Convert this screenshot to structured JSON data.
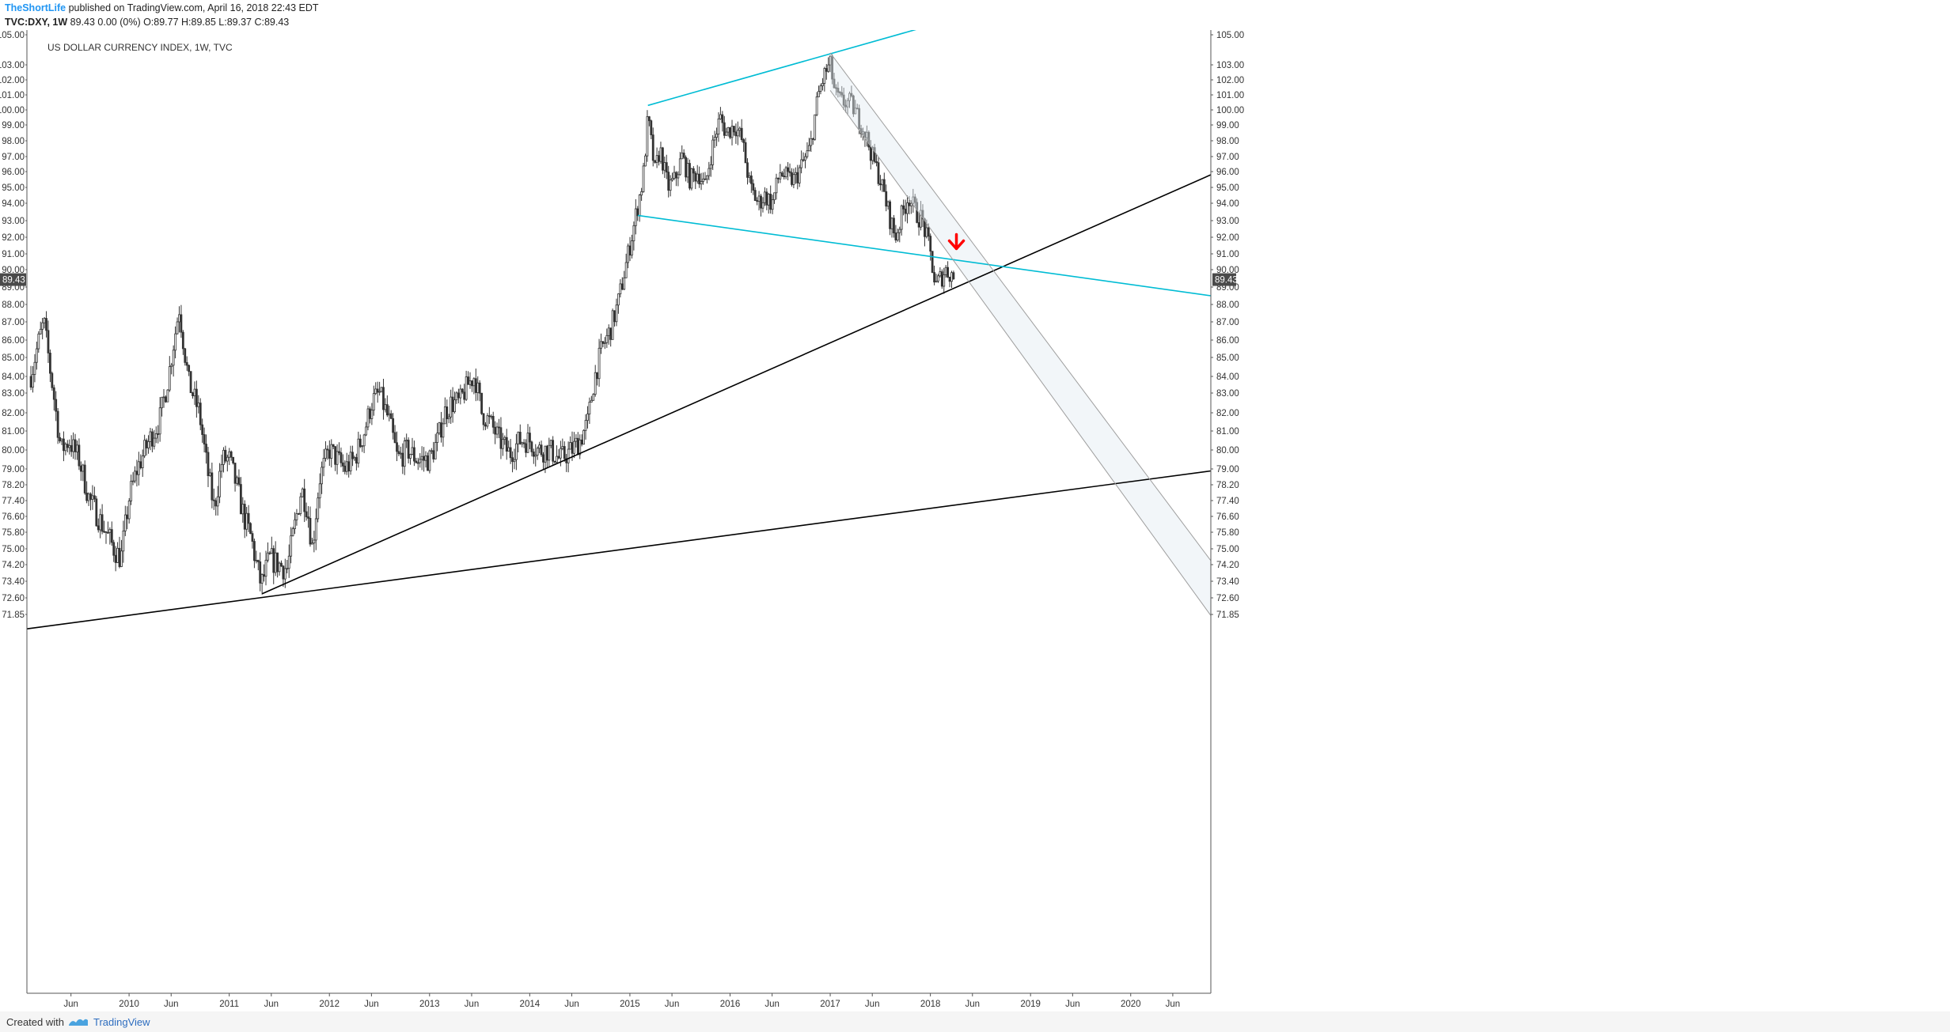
{
  "header": {
    "author": "TheShortLife",
    "published": " published on TradingView.com, April 16, 2018 22:43 EDT",
    "symbol": "TVC:DXY, 1W",
    "ohlc": "  89.43 0.00 (0%)  O:89.77  H:89.85  L:89.37  C:89.43"
  },
  "footer": {
    "created_with": "Created with",
    "brand": "TradingView"
  },
  "chart_data": {
    "type": "candlestick",
    "title": "US DOLLAR CURRENCY INDEX, 1W, TVC",
    "last_price": 89.43,
    "last_price_label": "89.43",
    "y_ticks": [
      {
        "v": 105.0,
        "label": "105.00"
      },
      {
        "v": 103.0,
        "label": "103.00"
      },
      {
        "v": 102.0,
        "label": "102.00"
      },
      {
        "v": 101.0,
        "label": "101.00"
      },
      {
        "v": 100.0,
        "label": "100.00"
      },
      {
        "v": 99.0,
        "label": "99.00"
      },
      {
        "v": 98.0,
        "label": "98.00"
      },
      {
        "v": 97.0,
        "label": "97.00"
      },
      {
        "v": 96.0,
        "label": "96.00"
      },
      {
        "v": 95.0,
        "label": "95.00"
      },
      {
        "v": 94.0,
        "label": "94.00"
      },
      {
        "v": 93.0,
        "label": "93.00"
      },
      {
        "v": 92.0,
        "label": "92.00"
      },
      {
        "v": 91.0,
        "label": "91.00"
      },
      {
        "v": 90.0,
        "label": "90.00"
      },
      {
        "v": 89.0,
        "label": "89.00"
      },
      {
        "v": 88.0,
        "label": "88.00"
      },
      {
        "v": 87.0,
        "label": "87.00"
      },
      {
        "v": 86.0,
        "label": "86.00"
      },
      {
        "v": 85.0,
        "label": "85.00"
      },
      {
        "v": 84.0,
        "label": "84.00"
      },
      {
        "v": 83.0,
        "label": "83.00"
      },
      {
        "v": 82.0,
        "label": "82.00"
      },
      {
        "v": 81.0,
        "label": "81.00"
      },
      {
        "v": 80.0,
        "label": "80.00"
      },
      {
        "v": 79.0,
        "label": "79.00"
      },
      {
        "v": 78.2,
        "label": "78.20"
      },
      {
        "v": 77.4,
        "label": "77.40"
      },
      {
        "v": 76.6,
        "label": "76.60"
      },
      {
        "v": 75.8,
        "label": "75.80"
      },
      {
        "v": 75.0,
        "label": "75.00"
      },
      {
        "v": 74.2,
        "label": "74.20"
      },
      {
        "v": 73.4,
        "label": "73.40"
      },
      {
        "v": 72.6,
        "label": "72.60"
      },
      {
        "v": 71.85,
        "label": "71.85"
      }
    ],
    "x_ticks": [
      {
        "t": 2009.42,
        "label": "Jun"
      },
      {
        "t": 2010.0,
        "label": "2010"
      },
      {
        "t": 2010.42,
        "label": "Jun"
      },
      {
        "t": 2011.0,
        "label": "2011"
      },
      {
        "t": 2011.42,
        "label": "Jun"
      },
      {
        "t": 2012.0,
        "label": "2012"
      },
      {
        "t": 2012.42,
        "label": "Jun"
      },
      {
        "t": 2013.0,
        "label": "2013"
      },
      {
        "t": 2013.42,
        "label": "Jun"
      },
      {
        "t": 2014.0,
        "label": "2014"
      },
      {
        "t": 2014.42,
        "label": "Jun"
      },
      {
        "t": 2015.0,
        "label": "2015"
      },
      {
        "t": 2015.42,
        "label": "Jun"
      },
      {
        "t": 2016.0,
        "label": "2016"
      },
      {
        "t": 2016.42,
        "label": "Jun"
      },
      {
        "t": 2017.0,
        "label": "2017"
      },
      {
        "t": 2017.42,
        "label": "Jun"
      },
      {
        "t": 2018.0,
        "label": "2018"
      },
      {
        "t": 2018.42,
        "label": "Jun"
      },
      {
        "t": 2019.0,
        "label": "2019"
      },
      {
        "t": 2019.42,
        "label": "Jun"
      },
      {
        "t": 2020.0,
        "label": "2020"
      },
      {
        "t": 2020.42,
        "label": "Jun"
      }
    ],
    "price_path": [
      [
        2009.02,
        84.0
      ],
      [
        2009.1,
        86.0
      ],
      [
        2009.15,
        87.0
      ],
      [
        2009.22,
        84.0
      ],
      [
        2009.32,
        80.0
      ],
      [
        2009.4,
        80.5
      ],
      [
        2009.5,
        79.5
      ],
      [
        2009.6,
        77.5
      ],
      [
        2009.7,
        76.5
      ],
      [
        2009.85,
        75.0
      ],
      [
        2009.92,
        74.5
      ],
      [
        2010.0,
        77.5
      ],
      [
        2010.08,
        79.0
      ],
      [
        2010.2,
        80.5
      ],
      [
        2010.3,
        81.5
      ],
      [
        2010.38,
        83.5
      ],
      [
        2010.45,
        86.0
      ],
      [
        2010.5,
        87.8
      ],
      [
        2010.55,
        85.5
      ],
      [
        2010.6,
        83.5
      ],
      [
        2010.7,
        82.0
      ],
      [
        2010.78,
        79.0
      ],
      [
        2010.85,
        77.0
      ],
      [
        2010.93,
        79.5
      ],
      [
        2011.0,
        79.5
      ],
      [
        2011.08,
        78.0
      ],
      [
        2011.15,
        76.5
      ],
      [
        2011.22,
        75.5
      ],
      [
        2011.28,
        74.0
      ],
      [
        2011.32,
        73.2
      ],
      [
        2011.4,
        74.5
      ],
      [
        2011.5,
        74.2
      ],
      [
        2011.58,
        74.0
      ],
      [
        2011.65,
        76.0
      ],
      [
        2011.72,
        78.0
      ],
      [
        2011.78,
        77.0
      ],
      [
        2011.83,
        75.0
      ],
      [
        2011.9,
        78.5
      ],
      [
        2012.0,
        80.0
      ],
      [
        2012.08,
        79.5
      ],
      [
        2012.15,
        79.0
      ],
      [
        2012.25,
        79.5
      ],
      [
        2012.35,
        81.0
      ],
      [
        2012.42,
        82.5
      ],
      [
        2012.5,
        83.0
      ],
      [
        2012.6,
        81.5
      ],
      [
        2012.68,
        79.5
      ],
      [
        2012.78,
        80.0
      ],
      [
        2012.88,
        79.5
      ],
      [
        2013.0,
        79.5
      ],
      [
        2013.08,
        80.5
      ],
      [
        2013.15,
        82.0
      ],
      [
        2013.22,
        82.5
      ],
      [
        2013.3,
        82.5
      ],
      [
        2013.38,
        83.5
      ],
      [
        2013.45,
        84.0
      ],
      [
        2013.52,
        82.0
      ],
      [
        2013.6,
        81.5
      ],
      [
        2013.7,
        80.5
      ],
      [
        2013.8,
        79.8
      ],
      [
        2013.9,
        80.5
      ],
      [
        2014.0,
        80.5
      ],
      [
        2014.08,
        80.0
      ],
      [
        2014.2,
        80.0
      ],
      [
        2014.3,
        79.5
      ],
      [
        2014.42,
        80.0
      ],
      [
        2014.5,
        80.5
      ],
      [
        2014.58,
        81.5
      ],
      [
        2014.65,
        84.0
      ],
      [
        2014.72,
        85.5
      ],
      [
        2014.8,
        86.5
      ],
      [
        2014.88,
        88.0
      ],
      [
        2014.95,
        90.0
      ],
      [
        2015.05,
        93.0
      ],
      [
        2015.13,
        95.5
      ],
      [
        2015.18,
        99.5
      ],
      [
        2015.25,
        96.0
      ],
      [
        2015.3,
        97.5
      ],
      [
        2015.38,
        95.0
      ],
      [
        2015.45,
        95.5
      ],
      [
        2015.52,
        97.0
      ],
      [
        2015.6,
        95.5
      ],
      [
        2015.68,
        96.0
      ],
      [
        2015.75,
        95.0
      ],
      [
        2015.82,
        97.5
      ],
      [
        2015.9,
        99.5
      ],
      [
        2015.96,
        98.5
      ],
      [
        2016.05,
        99.0
      ],
      [
        2016.12,
        98.0
      ],
      [
        2016.2,
        95.0
      ],
      [
        2016.28,
        94.0
      ],
      [
        2016.35,
        94.5
      ],
      [
        2016.42,
        94.0
      ],
      [
        2016.5,
        96.0
      ],
      [
        2016.58,
        95.5
      ],
      [
        2016.65,
        95.5
      ],
      [
        2016.72,
        96.5
      ],
      [
        2016.8,
        97.5
      ],
      [
        2016.88,
        101.0
      ],
      [
        2016.95,
        102.5
      ],
      [
        2017.0,
        103.0
      ],
      [
        2017.05,
        101.0
      ],
      [
        2017.12,
        100.5
      ],
      [
        2017.2,
        100.5
      ],
      [
        2017.28,
        99.5
      ],
      [
        2017.35,
        98.5
      ],
      [
        2017.42,
        97.0
      ],
      [
        2017.5,
        95.5
      ],
      [
        2017.58,
        93.5
      ],
      [
        2017.65,
        92.0
      ],
      [
        2017.7,
        93.0
      ],
      [
        2017.78,
        94.5
      ],
      [
        2017.85,
        93.5
      ],
      [
        2017.92,
        93.0
      ],
      [
        2018.0,
        91.0
      ],
      [
        2018.05,
        89.0
      ],
      [
        2018.1,
        89.5
      ],
      [
        2018.15,
        90.0
      ],
      [
        2018.2,
        89.8
      ],
      [
        2018.25,
        89.43
      ]
    ],
    "trendlines": [
      {
        "name": "lower-trendline",
        "color": "#000000",
        "points": [
          [
            2008.98,
            71.2
          ],
          [
            2020.8,
            78.9
          ]
        ]
      },
      {
        "name": "rising-support-line",
        "color": "#000000",
        "points": [
          [
            2011.33,
            72.8
          ],
          [
            2020.8,
            95.8
          ]
        ]
      },
      {
        "name": "channel-top-line",
        "color": "#00bcd4",
        "points": [
          [
            2015.18,
            100.3
          ],
          [
            2018.2,
            106.0
          ]
        ]
      },
      {
        "name": "channel-bottom-line",
        "color": "#00bcd4",
        "points": [
          [
            2015.08,
            93.3
          ],
          [
            2020.8,
            88.5
          ]
        ]
      },
      {
        "name": "falling-channel-upper",
        "color": "#9e9e9e",
        "points": [
          [
            2017.0,
            103.8
          ],
          [
            2020.8,
            74.4
          ]
        ]
      },
      {
        "name": "falling-channel-lower",
        "color": "#9e9e9e",
        "points": [
          [
            2017.0,
            101.3
          ],
          [
            2020.8,
            71.8
          ]
        ]
      }
    ],
    "annotation": {
      "type": "down-arrow",
      "color": "#ff0000",
      "t": 2018.26,
      "v": 91.5
    },
    "x_range": [
      2008.98,
      2020.8
    ],
    "grid": false
  }
}
